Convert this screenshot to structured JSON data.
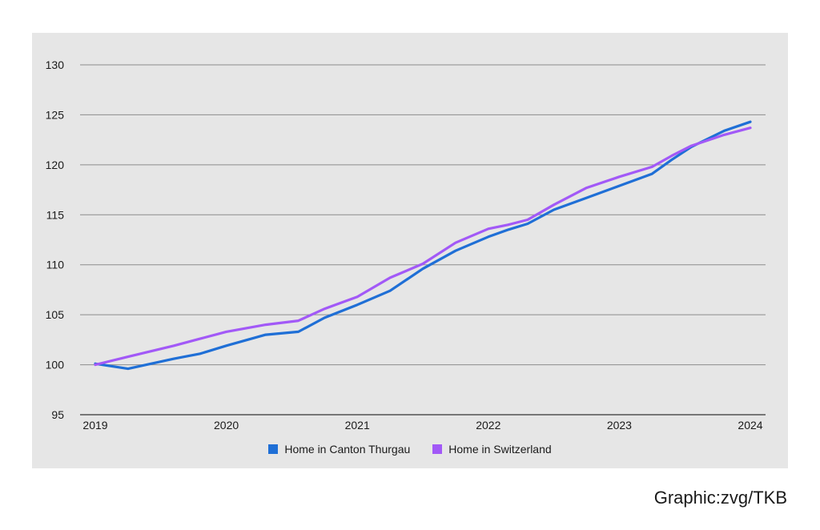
{
  "chart_data": {
    "type": "line",
    "title": "",
    "xlabel": "",
    "ylabel": "",
    "x_ticks": [
      "2019",
      "2020",
      "2021",
      "2022",
      "2023",
      "2024"
    ],
    "y_ticks": [
      "95",
      "100",
      "105",
      "110",
      "115",
      "120",
      "125",
      "130"
    ],
    "xlim": [
      2019,
      2024
    ],
    "ylim": [
      95,
      130
    ],
    "grid": true,
    "legend_position": "bottom-center",
    "series": [
      {
        "name": "Home in Canton Thurgau",
        "color": "#1f6fd6",
        "x": [
          2019.0,
          2019.25,
          2019.6,
          2019.8,
          2020.0,
          2020.3,
          2020.55,
          2020.75,
          2021.0,
          2021.25,
          2021.5,
          2021.75,
          2022.0,
          2022.15,
          2022.3,
          2022.5,
          2022.75,
          2023.0,
          2023.25,
          2023.4,
          2023.55,
          2023.8,
          2024.0
        ],
        "values": [
          100.1,
          99.6,
          100.6,
          101.1,
          101.9,
          103.0,
          103.3,
          104.7,
          106.0,
          107.4,
          109.6,
          111.4,
          112.8,
          113.5,
          114.1,
          115.5,
          116.7,
          117.9,
          119.1,
          120.5,
          121.8,
          123.4,
          124.3
        ]
      },
      {
        "name": "Home in Switzerland",
        "color": "#a259f7",
        "x": [
          2019.0,
          2019.25,
          2019.6,
          2019.8,
          2020.0,
          2020.3,
          2020.55,
          2020.75,
          2021.0,
          2021.25,
          2021.5,
          2021.75,
          2022.0,
          2022.15,
          2022.3,
          2022.5,
          2022.75,
          2023.0,
          2023.25,
          2023.4,
          2023.55,
          2023.8,
          2024.0
        ],
        "values": [
          100.0,
          100.8,
          101.9,
          102.6,
          103.3,
          104.0,
          104.4,
          105.6,
          106.8,
          108.7,
          110.1,
          112.2,
          113.6,
          114.0,
          114.5,
          116.0,
          117.7,
          118.8,
          119.8,
          120.9,
          121.9,
          123.0,
          123.7
        ]
      }
    ]
  },
  "credit": "Graphic:zvg/TKB"
}
